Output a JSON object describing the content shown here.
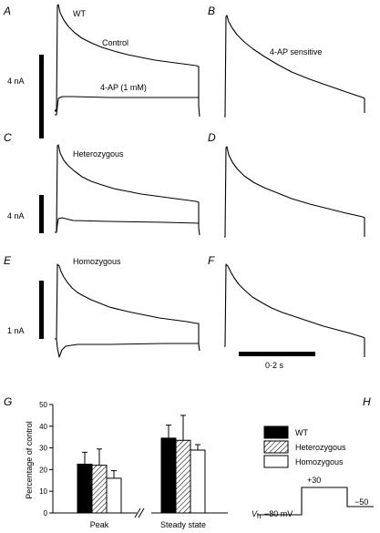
{
  "panels": {
    "A": {
      "letter": "A",
      "label_top": "WT",
      "label_control": "Control",
      "label_drug": "4-AP (1 mM)",
      "scale": "4 nA"
    },
    "B": {
      "letter": "B",
      "label": "4-AP sensitive"
    },
    "C": {
      "letter": "C",
      "label": "Heterozygous",
      "scale": "4 nA"
    },
    "D": {
      "letter": "D"
    },
    "E": {
      "letter": "E",
      "label": "Homozygous",
      "scale": "1 nA"
    },
    "F": {
      "letter": "F",
      "time_scale": "0·2 s"
    },
    "G": {
      "letter": "G"
    },
    "H": {
      "letter": "H",
      "v_hold": "V",
      "v_hold_sub": "h",
      "v_hold_value": "−80 mV",
      "v_step": "+30",
      "v_tail": "−50"
    }
  },
  "chart_data": {
    "type": "bar",
    "groups": [
      "Peak",
      "Steady state"
    ],
    "ylabel": "Percentage of control",
    "ylim": [
      0,
      50
    ],
    "yticks": [
      "0",
      "10",
      "20",
      "30",
      "40",
      "50"
    ],
    "series": [
      {
        "name": "WT",
        "fill": "#000000",
        "values": [
          22.5,
          34.5
        ],
        "errors": [
          5.5,
          6
        ]
      },
      {
        "name": "Heterozygous",
        "fill": "hatch",
        "values": [
          22,
          33.5
        ],
        "errors": [
          7.5,
          11.5
        ]
      },
      {
        "name": "Homozygous",
        "fill": "#ffffff",
        "values": [
          16,
          29
        ],
        "errors": [
          3.5,
          2.5
        ]
      }
    ],
    "legend_position": "right"
  }
}
